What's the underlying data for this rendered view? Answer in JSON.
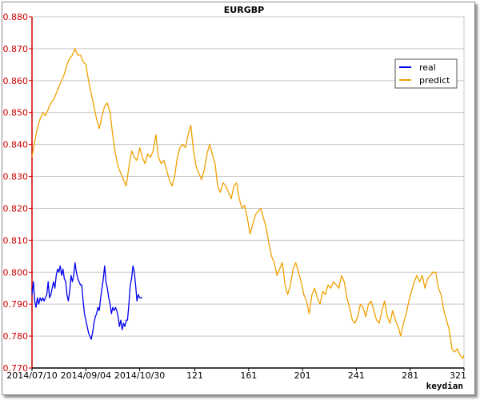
{
  "chart_data": {
    "type": "line",
    "title": "EURGBP",
    "ylim": [
      0.77,
      0.88
    ],
    "xlim": [
      0,
      321
    ],
    "yticks": [
      "0.770",
      "0.780",
      "0.790",
      "0.800",
      "0.810",
      "0.820",
      "0.830",
      "0.840",
      "0.850",
      "0.860",
      "0.870",
      "0.880"
    ],
    "xticks": [
      {
        "x": 0,
        "label": "2014/07/10"
      },
      {
        "x": 40,
        "label": "2014/09/04"
      },
      {
        "x": 80,
        "label": "2014/10/30"
      },
      {
        "x": 121,
        "label": "121"
      },
      {
        "x": 161,
        "label": "161"
      },
      {
        "x": 201,
        "label": "201"
      },
      {
        "x": 241,
        "label": "241"
      },
      {
        "x": 281,
        "label": "281"
      },
      {
        "x": 321,
        "label": "321"
      }
    ],
    "grid": true,
    "legend_position": "top-right",
    "credit": "keydian",
    "series": [
      {
        "name": "real",
        "color": "#0000ee",
        "points": [
          [
            0,
            0.793
          ],
          [
            1,
            0.797
          ],
          [
            2,
            0.791
          ],
          [
            3,
            0.789
          ],
          [
            4,
            0.792
          ],
          [
            5,
            0.79
          ],
          [
            6,
            0.792
          ],
          [
            7,
            0.791
          ],
          [
            8,
            0.792
          ],
          [
            9,
            0.791
          ],
          [
            10,
            0.792
          ],
          [
            11,
            0.793
          ],
          [
            12,
            0.797
          ],
          [
            13,
            0.792
          ],
          [
            14,
            0.793
          ],
          [
            15,
            0.795
          ],
          [
            16,
            0.797
          ],
          [
            17,
            0.795
          ],
          [
            18,
            0.799
          ],
          [
            19,
            0.801
          ],
          [
            20,
            0.8
          ],
          [
            21,
            0.802
          ],
          [
            22,
            0.799
          ],
          [
            23,
            0.801
          ],
          [
            24,
            0.798
          ],
          [
            25,
            0.797
          ],
          [
            26,
            0.793
          ],
          [
            27,
            0.791
          ],
          [
            28,
            0.794
          ],
          [
            29,
            0.799
          ],
          [
            30,
            0.797
          ],
          [
            31,
            0.799
          ],
          [
            32,
            0.803
          ],
          [
            33,
            0.8
          ],
          [
            34,
            0.798
          ],
          [
            35,
            0.797
          ],
          [
            36,
            0.796
          ],
          [
            37,
            0.796
          ],
          [
            38,
            0.791
          ],
          [
            39,
            0.787
          ],
          [
            40,
            0.785
          ],
          [
            41,
            0.783
          ],
          [
            42,
            0.781
          ],
          [
            43,
            0.78
          ],
          [
            44,
            0.779
          ],
          [
            45,
            0.781
          ],
          [
            46,
            0.784
          ],
          [
            47,
            0.786
          ],
          [
            48,
            0.787
          ],
          [
            49,
            0.789
          ],
          [
            50,
            0.788
          ],
          [
            51,
            0.792
          ],
          [
            52,
            0.795
          ],
          [
            53,
            0.798
          ],
          [
            54,
            0.802
          ],
          [
            55,
            0.797
          ],
          [
            56,
            0.795
          ],
          [
            57,
            0.792
          ],
          [
            58,
            0.79
          ],
          [
            59,
            0.787
          ],
          [
            60,
            0.789
          ],
          [
            61,
            0.788
          ],
          [
            62,
            0.789
          ],
          [
            63,
            0.788
          ],
          [
            64,
            0.786
          ],
          [
            65,
            0.783
          ],
          [
            66,
            0.785
          ],
          [
            67,
            0.782
          ],
          [
            68,
            0.784
          ],
          [
            69,
            0.783
          ],
          [
            70,
            0.785
          ],
          [
            71,
            0.785
          ],
          [
            72,
            0.79
          ],
          [
            73,
            0.796
          ],
          [
            74,
            0.798
          ],
          [
            75,
            0.802
          ],
          [
            76,
            0.8
          ],
          [
            77,
            0.796
          ],
          [
            78,
            0.791
          ],
          [
            79,
            0.793
          ],
          [
            80,
            0.792
          ],
          [
            81,
            0.792
          ],
          [
            82,
            0.792
          ]
        ]
      },
      {
        "name": "predict",
        "color": "#f0a000",
        "points": [
          [
            0,
            0.836
          ],
          [
            2,
            0.841
          ],
          [
            4,
            0.845
          ],
          [
            6,
            0.848
          ],
          [
            8,
            0.85
          ],
          [
            10,
            0.849
          ],
          [
            12,
            0.851
          ],
          [
            14,
            0.853
          ],
          [
            16,
            0.854
          ],
          [
            18,
            0.856
          ],
          [
            20,
            0.858
          ],
          [
            22,
            0.86
          ],
          [
            24,
            0.862
          ],
          [
            26,
            0.865
          ],
          [
            28,
            0.867
          ],
          [
            30,
            0.868
          ],
          [
            32,
            0.87
          ],
          [
            34,
            0.868
          ],
          [
            36,
            0.868
          ],
          [
            38,
            0.866
          ],
          [
            40,
            0.865
          ],
          [
            42,
            0.86
          ],
          [
            44,
            0.856
          ],
          [
            46,
            0.852
          ],
          [
            48,
            0.848
          ],
          [
            50,
            0.845
          ],
          [
            52,
            0.849
          ],
          [
            54,
            0.852
          ],
          [
            56,
            0.853
          ],
          [
            58,
            0.85
          ],
          [
            60,
            0.843
          ],
          [
            62,
            0.837
          ],
          [
            64,
            0.833
          ],
          [
            66,
            0.831
          ],
          [
            68,
            0.829
          ],
          [
            70,
            0.827
          ],
          [
            72,
            0.833
          ],
          [
            74,
            0.838
          ],
          [
            76,
            0.836
          ],
          [
            78,
            0.835
          ],
          [
            80,
            0.839
          ],
          [
            82,
            0.836
          ],
          [
            84,
            0.834
          ],
          [
            86,
            0.837
          ],
          [
            88,
            0.836
          ],
          [
            90,
            0.838
          ],
          [
            92,
            0.843
          ],
          [
            94,
            0.836
          ],
          [
            96,
            0.834
          ],
          [
            98,
            0.835
          ],
          [
            100,
            0.832
          ],
          [
            102,
            0.829
          ],
          [
            104,
            0.827
          ],
          [
            106,
            0.83
          ],
          [
            108,
            0.836
          ],
          [
            110,
            0.839
          ],
          [
            112,
            0.84
          ],
          [
            114,
            0.839
          ],
          [
            116,
            0.843
          ],
          [
            118,
            0.846
          ],
          [
            120,
            0.838
          ],
          [
            122,
            0.833
          ],
          [
            124,
            0.831
          ],
          [
            126,
            0.829
          ],
          [
            128,
            0.832
          ],
          [
            130,
            0.837
          ],
          [
            132,
            0.84
          ],
          [
            134,
            0.837
          ],
          [
            136,
            0.834
          ],
          [
            138,
            0.827
          ],
          [
            140,
            0.825
          ],
          [
            142,
            0.828
          ],
          [
            144,
            0.827
          ],
          [
            146,
            0.825
          ],
          [
            148,
            0.823
          ],
          [
            150,
            0.827
          ],
          [
            152,
            0.828
          ],
          [
            154,
            0.823
          ],
          [
            156,
            0.82
          ],
          [
            158,
            0.821
          ],
          [
            160,
            0.817
          ],
          [
            162,
            0.812
          ],
          [
            164,
            0.815
          ],
          [
            166,
            0.818
          ],
          [
            168,
            0.819
          ],
          [
            170,
            0.82
          ],
          [
            172,
            0.817
          ],
          [
            174,
            0.814
          ],
          [
            176,
            0.809
          ],
          [
            178,
            0.805
          ],
          [
            180,
            0.803
          ],
          [
            182,
            0.799
          ],
          [
            184,
            0.801
          ],
          [
            186,
            0.803
          ],
          [
            188,
            0.796
          ],
          [
            190,
            0.793
          ],
          [
            192,
            0.796
          ],
          [
            194,
            0.801
          ],
          [
            196,
            0.803
          ],
          [
            198,
            0.8
          ],
          [
            200,
            0.797
          ],
          [
            202,
            0.793
          ],
          [
            204,
            0.791
          ],
          [
            206,
            0.787
          ],
          [
            208,
            0.793
          ],
          [
            210,
            0.795
          ],
          [
            212,
            0.792
          ],
          [
            214,
            0.79
          ],
          [
            216,
            0.794
          ],
          [
            218,
            0.793
          ],
          [
            220,
            0.796
          ],
          [
            222,
            0.795
          ],
          [
            224,
            0.797
          ],
          [
            226,
            0.796
          ],
          [
            228,
            0.795
          ],
          [
            230,
            0.799
          ],
          [
            232,
            0.797
          ],
          [
            234,
            0.792
          ],
          [
            236,
            0.789
          ],
          [
            238,
            0.785
          ],
          [
            240,
            0.784
          ],
          [
            242,
            0.786
          ],
          [
            244,
            0.79
          ],
          [
            246,
            0.789
          ],
          [
            248,
            0.786
          ],
          [
            250,
            0.79
          ],
          [
            252,
            0.791
          ],
          [
            254,
            0.788
          ],
          [
            256,
            0.785
          ],
          [
            258,
            0.784
          ],
          [
            260,
            0.788
          ],
          [
            262,
            0.791
          ],
          [
            264,
            0.786
          ],
          [
            266,
            0.784
          ],
          [
            268,
            0.788
          ],
          [
            270,
            0.785
          ],
          [
            272,
            0.783
          ],
          [
            274,
            0.78
          ],
          [
            276,
            0.784
          ],
          [
            278,
            0.787
          ],
          [
            280,
            0.791
          ],
          [
            282,
            0.794
          ],
          [
            284,
            0.797
          ],
          [
            286,
            0.799
          ],
          [
            288,
            0.797
          ],
          [
            290,
            0.799
          ],
          [
            292,
            0.795
          ],
          [
            294,
            0.798
          ],
          [
            296,
            0.799
          ],
          [
            298,
            0.8
          ],
          [
            300,
            0.8
          ],
          [
            302,
            0.795
          ],
          [
            304,
            0.793
          ],
          [
            306,
            0.788
          ],
          [
            308,
            0.785
          ],
          [
            310,
            0.782
          ],
          [
            312,
            0.776
          ],
          [
            314,
            0.775
          ],
          [
            316,
            0.776
          ],
          [
            318,
            0.774
          ],
          [
            320,
            0.773
          ],
          [
            321,
            0.774
          ]
        ]
      }
    ]
  }
}
